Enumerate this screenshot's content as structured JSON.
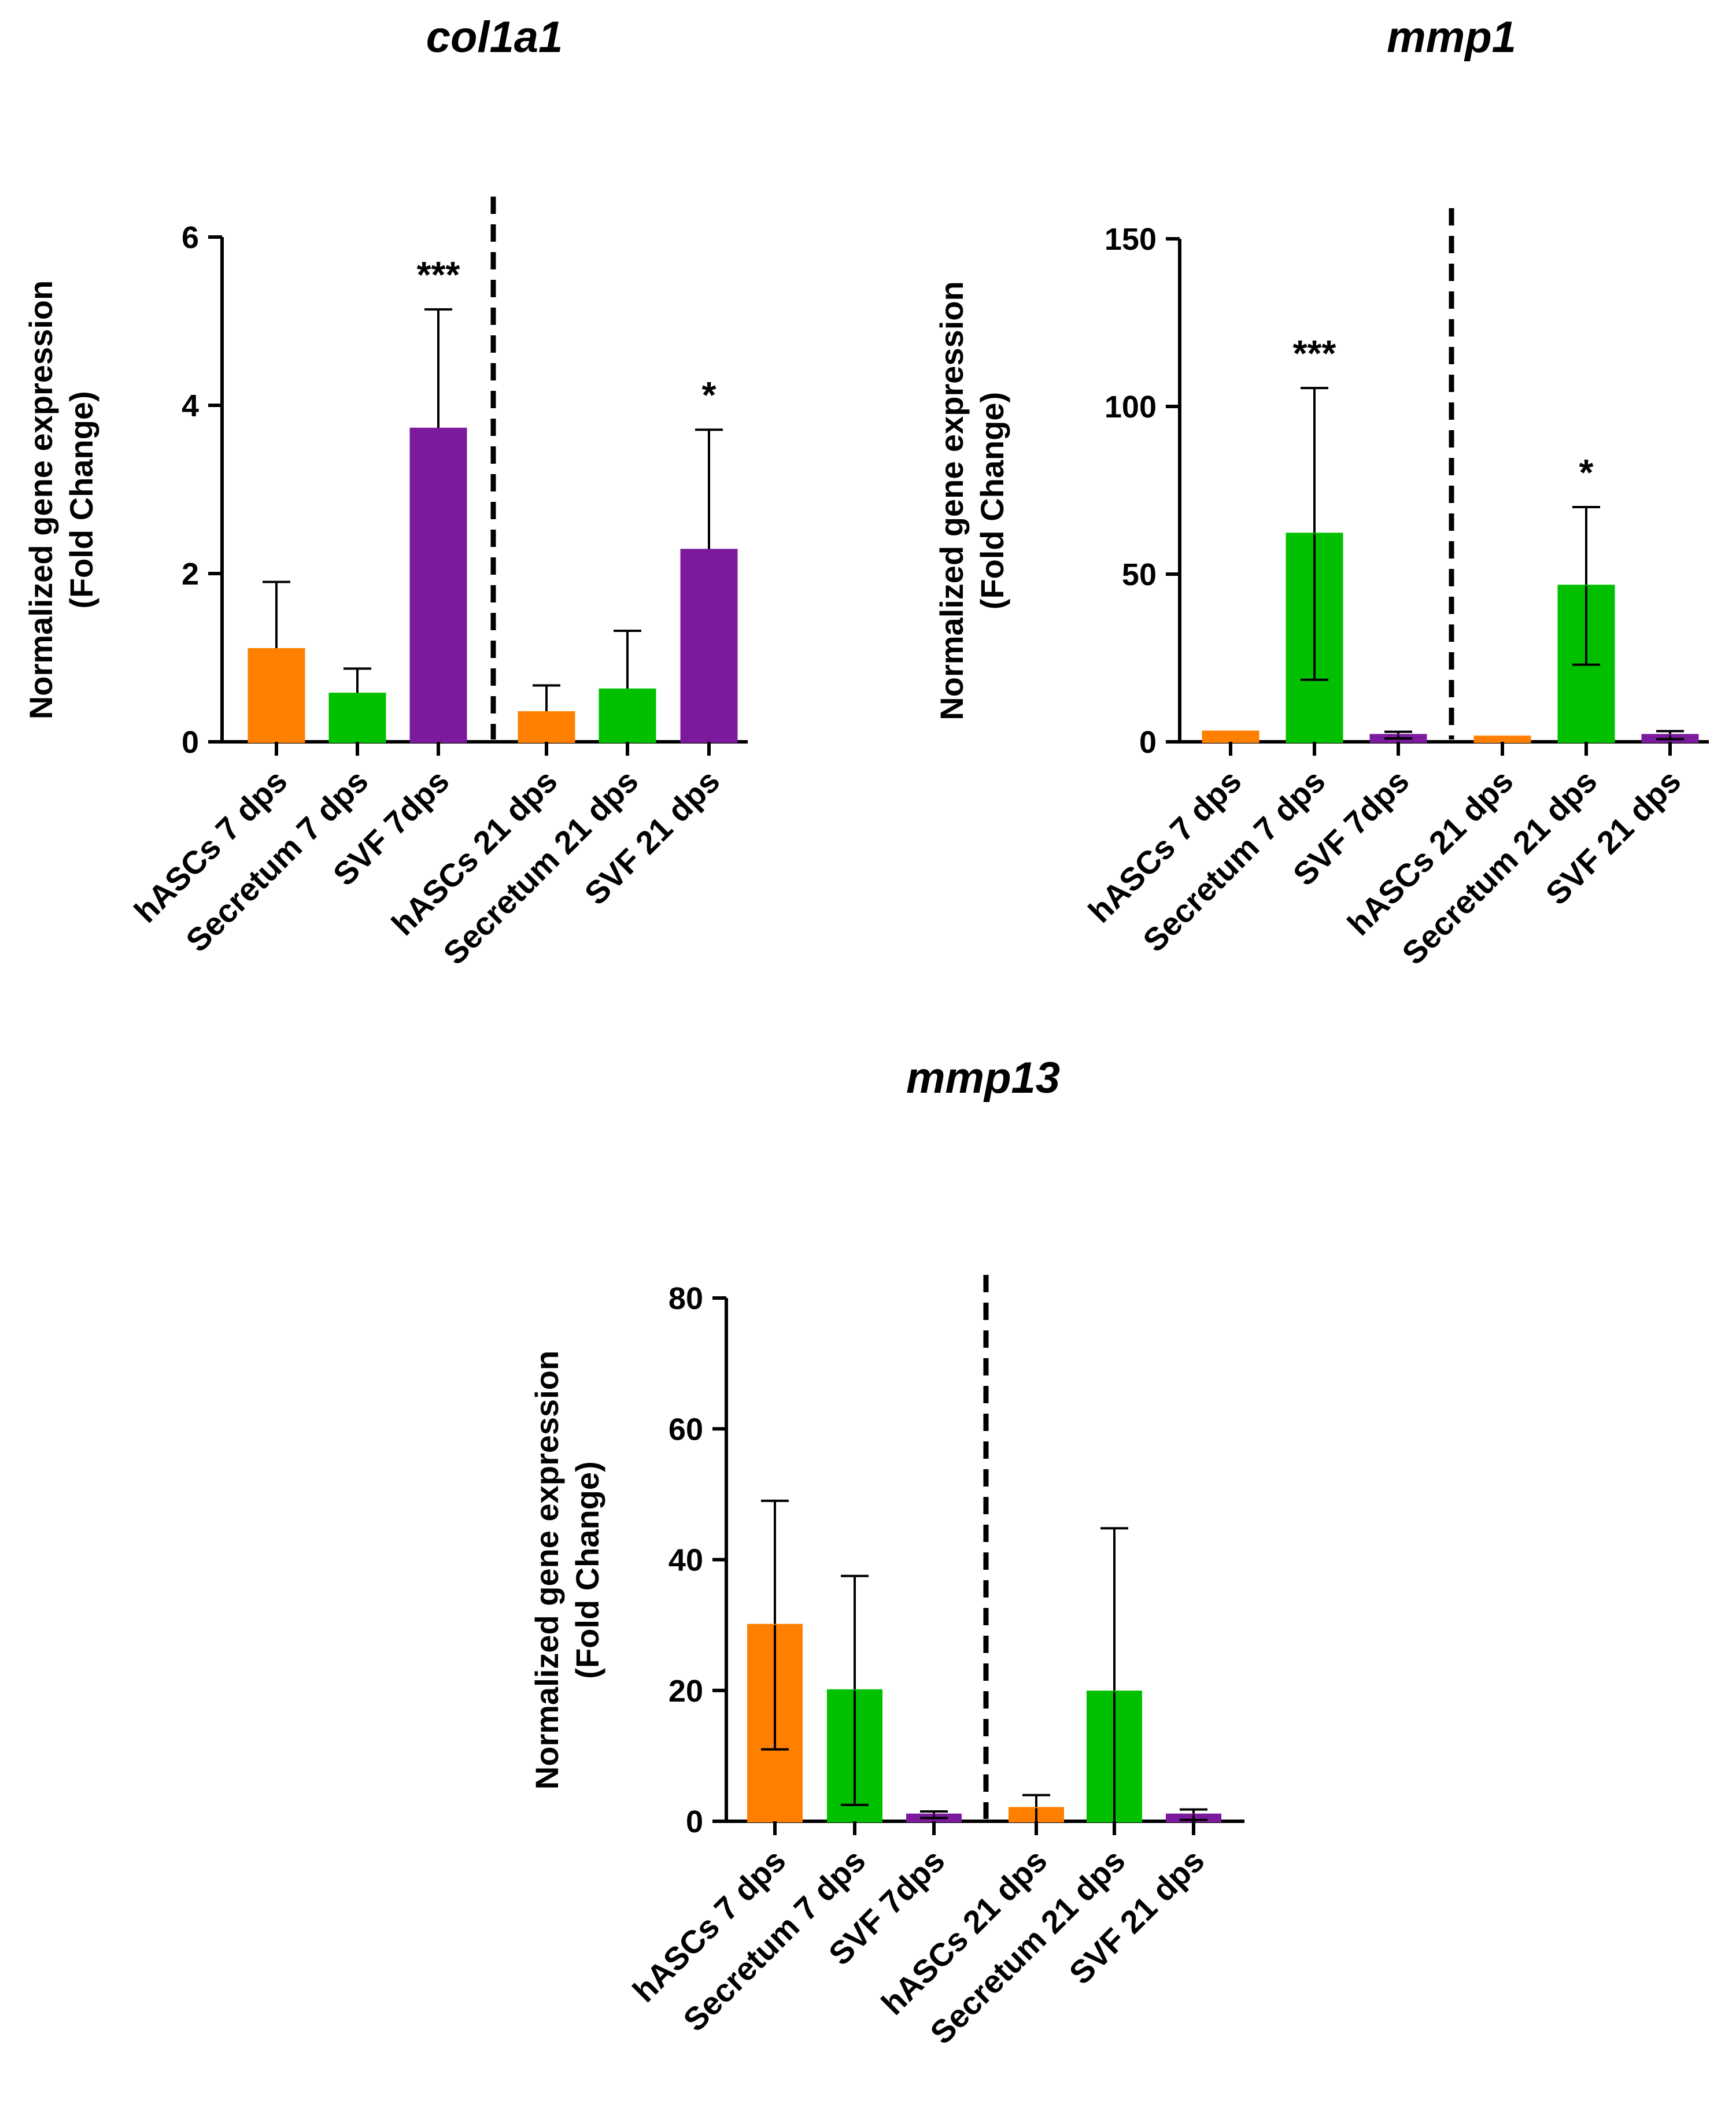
{
  "colors": {
    "hASCs": "#ff8000",
    "Secretum": "#00c000",
    "SVF": "#7b1a9c",
    "axis": "#000000"
  },
  "chart_data": [
    {
      "type": "bar",
      "title": "col1a1",
      "ylabel_line1": "Normalized gene expression",
      "ylabel_line2": "(Fold Change)",
      "xlabel": "",
      "ylim": [
        0,
        6
      ],
      "yticks": [
        0,
        2,
        4,
        6
      ],
      "categories": [
        "hASCs 7 dps",
        "Secretum 7 dps",
        "SVF 7dps",
        "hASCs 21 dps",
        "Secretum 21 dps",
        "SVF 21 dps"
      ],
      "groups": [
        "hASCs",
        "Secretum",
        "SVF",
        "hASCs",
        "Secretum",
        "SVF"
      ],
      "values": [
        1.1,
        0.57,
        3.72,
        0.35,
        0.62,
        2.28
      ],
      "error": [
        0.8,
        0.3,
        1.42,
        0.32,
        0.7,
        1.43
      ],
      "error_both_sides": false,
      "significance": [
        "",
        "",
        "***",
        "",
        "",
        "*"
      ],
      "divider_after_index": 2,
      "grid": false
    },
    {
      "type": "bar",
      "title": "mmp1",
      "ylabel_line1": "Normalized gene expression",
      "ylabel_line2": "(Fold Change)",
      "xlabel": "",
      "ylim": [
        0,
        150
      ],
      "yticks": [
        0,
        50,
        100,
        150
      ],
      "categories": [
        "hASCs 7 dps",
        "Secretum 7 dps",
        "SVF 7dps",
        "hASCs 21 dps",
        "Secretum 21 dps",
        "SVF 21 dps"
      ],
      "groups": [
        "hASCs",
        "Secretum",
        "SVF",
        "hASCs",
        "Secretum",
        "SVF"
      ],
      "values": [
        3,
        62,
        2,
        1.5,
        46.5,
        2
      ],
      "error": [
        0,
        43.5,
        1,
        0,
        23.5,
        1.2
      ],
      "error_both_sides": true,
      "significance": [
        "",
        "***",
        "",
        "",
        "*",
        ""
      ],
      "divider_after_index": 2,
      "grid": false
    },
    {
      "type": "bar",
      "title": "mmp13",
      "ylabel_line1": "Normalized gene expression",
      "ylabel_line2": "(Fold Change)",
      "xlabel": "",
      "ylim": [
        0,
        80
      ],
      "yticks": [
        0,
        20,
        40,
        60,
        80
      ],
      "categories": [
        "hASCs 7 dps",
        "Secretum 7 dps",
        "SVF 7dps",
        "hASCs 21 dps",
        "Secretum 21 dps",
        "SVF 21 dps"
      ],
      "groups": [
        "hASCs",
        "Secretum",
        "SVF",
        "hASCs",
        "Secretum",
        "SVF"
      ],
      "values": [
        30,
        20,
        1,
        2,
        19.8,
        1
      ],
      "error": [
        19,
        17.5,
        0.5,
        2,
        25,
        0.8
      ],
      "error_both_sides": true,
      "significance": [
        "",
        "",
        "",
        "",
        "",
        ""
      ],
      "divider_after_index": 2,
      "grid": false
    }
  ]
}
